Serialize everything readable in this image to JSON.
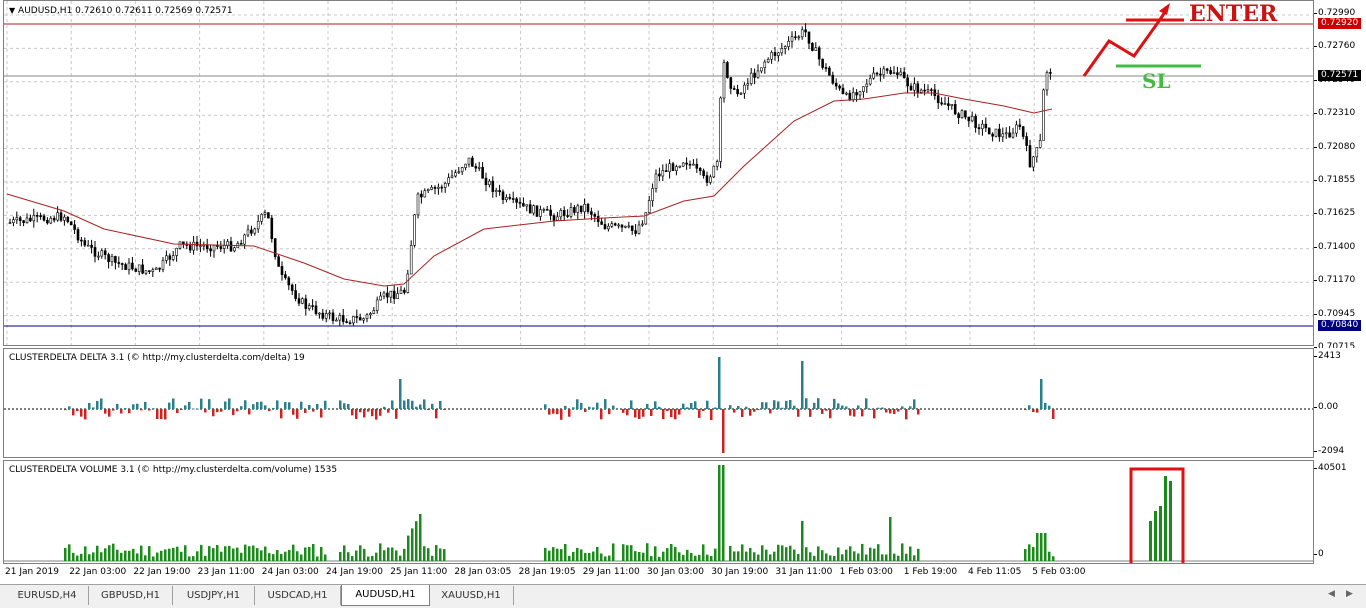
{
  "main_chart": {
    "header": "AUDUSD,H1  0.72610 0.72611 0.72569 0.72571",
    "menu_icon": "triangle-down-icon",
    "price_levels": [
      "0.72990",
      "0.72760",
      "0.72540",
      "0.72310",
      "0.72080",
      "0.71855",
      "0.71625",
      "0.71400",
      "0.71170",
      "0.70945",
      "0.70715"
    ],
    "markers": [
      {
        "label": "0.72920",
        "color": "#cc0000"
      },
      {
        "label": "0.72571",
        "color": "#000000"
      },
      {
        "label": "0.70840",
        "color": "#000080"
      }
    ],
    "annotations": {
      "enter": "ENTER",
      "sl": "SL"
    }
  },
  "delta_panel": {
    "header": "CLUSTERDELTA DELTA 3.1 (© http://my.clusterdelta.com/delta) 19",
    "levels": [
      "2413",
      "0.00",
      "-2094"
    ]
  },
  "volume_panel": {
    "header": "CLUSTERDELTA VOLUME 3.1 (© http://my.clusterdelta.com/volume) 1535",
    "levels": [
      "40501",
      "0"
    ]
  },
  "time_labels": [
    "21 Jan 2019",
    "22 Jan 03:00",
    "22 Jan 19:00",
    "23 Jan 11:00",
    "24 Jan 03:00",
    "24 Jan 19:00",
    "25 Jan 11:00",
    "28 Jan 03:05",
    "28 Jan 19:05",
    "29 Jan 11:00",
    "30 Jan 03:00",
    "30 Jan 19:00",
    "31 Jan 11:00",
    "1 Feb 03:00",
    "1 Feb 19:00",
    "4 Feb 11:05",
    "5 Feb 03:00"
  ],
  "tabs": [
    "EURUSD,H4",
    "GBPUSD,H1",
    "USDJPY,H1",
    "USDCAD,H1",
    "AUDUSD,H1",
    "XAUUSD,H1"
  ],
  "active_tab": "AUDUSD,H1",
  "colors": {
    "bull": "#000000",
    "delta_pos": "#2a7f8a",
    "delta_neg": "#cc2222",
    "volume": "#1a8a1a",
    "ma": "#aa2222"
  }
}
